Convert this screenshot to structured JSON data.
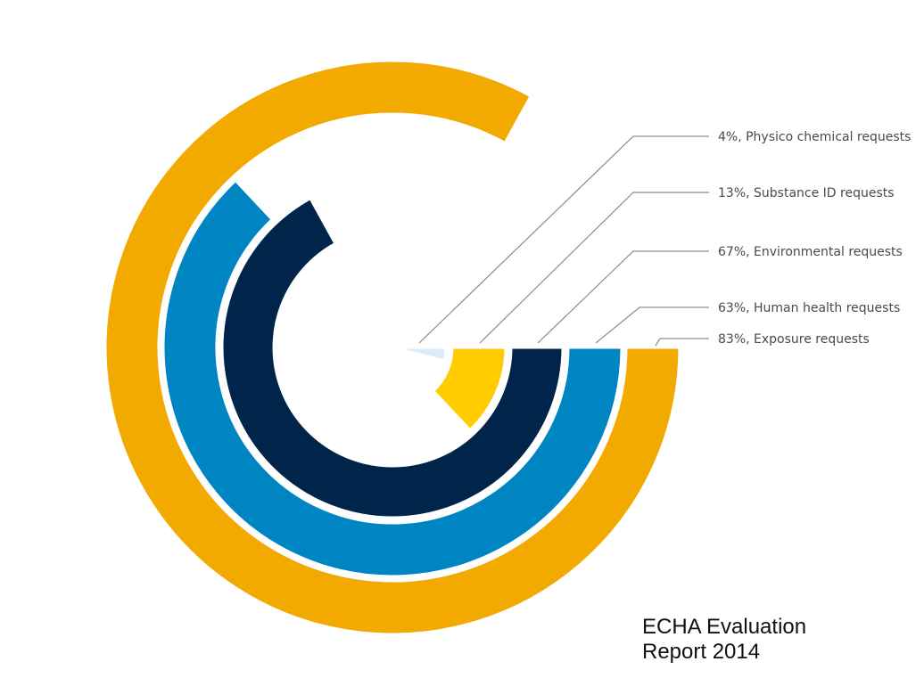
{
  "chart_data": {
    "type": "radial-bar",
    "categories": [
      "Physico chemical requests",
      "Substance ID requests",
      "Environmental requests",
      "Human health requests",
      "Exposure requests"
    ],
    "values": [
      4,
      13,
      67,
      63,
      83
    ],
    "value_unit": "%",
    "labels": [
      "4%, Physico chemical requests",
      "13%, Substance ID requests",
      "67%, Environmental requests",
      "63%, Human health requests",
      "83%, Exposure requests"
    ],
    "colors": [
      "#d9ecf8",
      "#ffcc00",
      "#00244a",
      "#0085c3",
      "#f2a900"
    ],
    "legend_position": "right",
    "start_direction": "east",
    "orientation": "clockwise"
  },
  "note": {
    "line1": "ECHA Evaluation",
    "line2": "Report 2014"
  }
}
